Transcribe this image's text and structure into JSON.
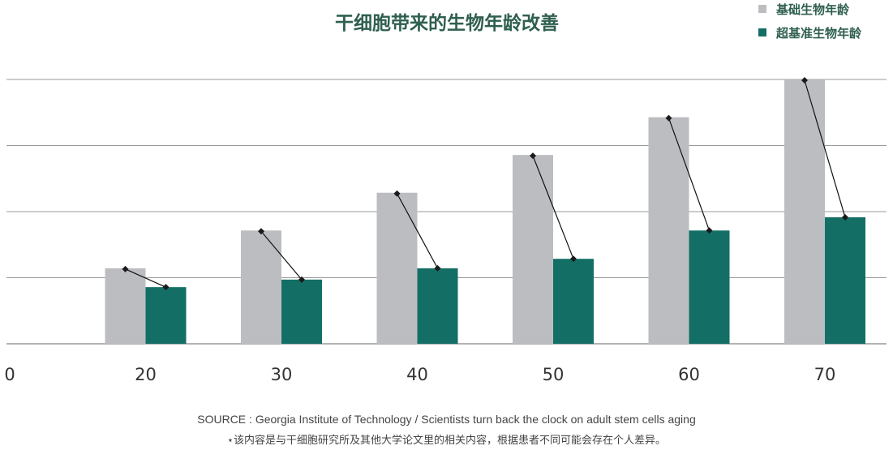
{
  "chart_data": {
    "type": "bar",
    "title": "干细胞带来的生物年龄改善",
    "xlabel": "",
    "ylabel": "",
    "categories": [
      "0",
      "20",
      "30",
      "40",
      "50",
      "60",
      "70"
    ],
    "series": [
      {
        "name": "基础生物年龄",
        "color": "#bcbdc1",
        "values": [
          null,
          20,
          30,
          40,
          50,
          60,
          70
        ]
      },
      {
        "name": "超基准生物年龄",
        "color": "#136f66",
        "values": [
          null,
          15,
          17,
          20,
          22.5,
          30,
          33.5
        ]
      }
    ],
    "ylim": [
      -10,
      70
    ],
    "y_gridlines": [
      0,
      10,
      20,
      30,
      40,
      50,
      60,
      70
    ],
    "connector_lines": true,
    "grid": true,
    "legend": "top-right"
  },
  "footer": {
    "source": "SOURCE : Georgia Institute of Technology / Scientists turn back the clock on adult stem cells aging",
    "note": "⋆该内容是与干细胞研究所及其他大学论文里的相关内容，根据患者不同可能会存在个人差异。"
  },
  "colors": {
    "grid": "#9a9a9a",
    "connector": "#111111",
    "title": "#2f5f50"
  }
}
